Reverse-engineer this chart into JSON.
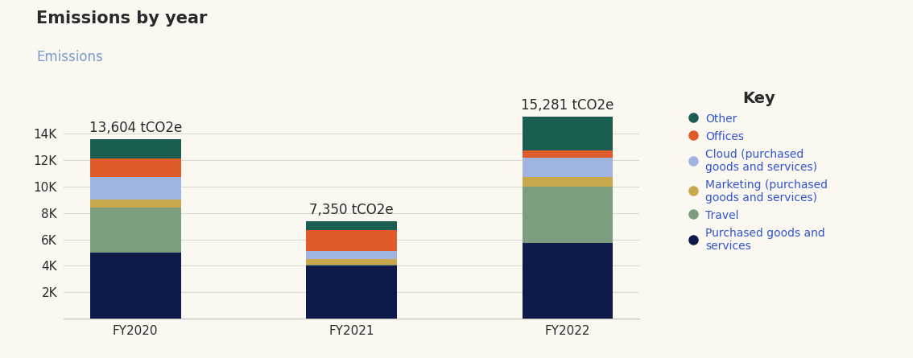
{
  "title": "Emissions by year",
  "subtitle": "Emissions",
  "background_color": "#faf8f0",
  "categories": [
    "FY2020",
    "FY2021",
    "FY2022"
  ],
  "totals": [
    13604,
    7350,
    15281
  ],
  "total_labels": [
    "13,604 tCO2e",
    "7,350 tCO2e",
    "15,281 tCO2e"
  ],
  "segments": {
    "Purchased goods and services": {
      "values": [
        5000,
        4050,
        5700
      ],
      "color": "#0d1a4a"
    },
    "Travel": {
      "values": [
        3400,
        50,
        4300
      ],
      "color": "#7a9e7e"
    },
    "Marketing": {
      "values": [
        600,
        400,
        700
      ],
      "color": "#c9a84c"
    },
    "Cloud": {
      "values": [
        1700,
        600,
        1500
      ],
      "color": "#a0b4e0"
    },
    "Offices": {
      "values": [
        1400,
        1600,
        550
      ],
      "color": "#e05a2b"
    },
    "Other": {
      "values": [
        1504,
        650,
        2531
      ],
      "color": "#1a5e52"
    }
  },
  "legend_order": [
    "Other",
    "Offices",
    "Cloud",
    "Marketing",
    "Travel",
    "Purchased goods and services"
  ],
  "legend_labels": {
    "Other": "Other",
    "Offices": "Offices",
    "Cloud": "Cloud (purchased\ngoods and services)",
    "Marketing": "Marketing (purchased\ngoods and services)",
    "Travel": "Travel",
    "Purchased goods and services": "Purchased goods and\nservices"
  },
  "legend_colors": {
    "Other": "#1a5e52",
    "Offices": "#e05a2b",
    "Cloud": "#a0b4e0",
    "Marketing": "#c9a84c",
    "Travel": "#7a9e7e",
    "Purchased goods and services": "#0d1a4a"
  },
  "yticks": [
    2000,
    4000,
    6000,
    8000,
    10000,
    12000,
    14000
  ],
  "ytick_labels": [
    "2K",
    "4K",
    "6K",
    "8K",
    "10K",
    "12K",
    "14K"
  ],
  "ylim": [
    0,
    16800
  ],
  "title_fontsize": 15,
  "subtitle_fontsize": 12,
  "tick_fontsize": 11,
  "label_fontsize": 12,
  "legend_title": "Key",
  "legend_title_fontsize": 14,
  "legend_fontsize": 10,
  "bar_width": 0.42,
  "text_color_blue": "#3355cc",
  "text_color_dark": "#2a2a2a",
  "subtitle_color": "#7a99cc",
  "bg": "#faf8f0"
}
